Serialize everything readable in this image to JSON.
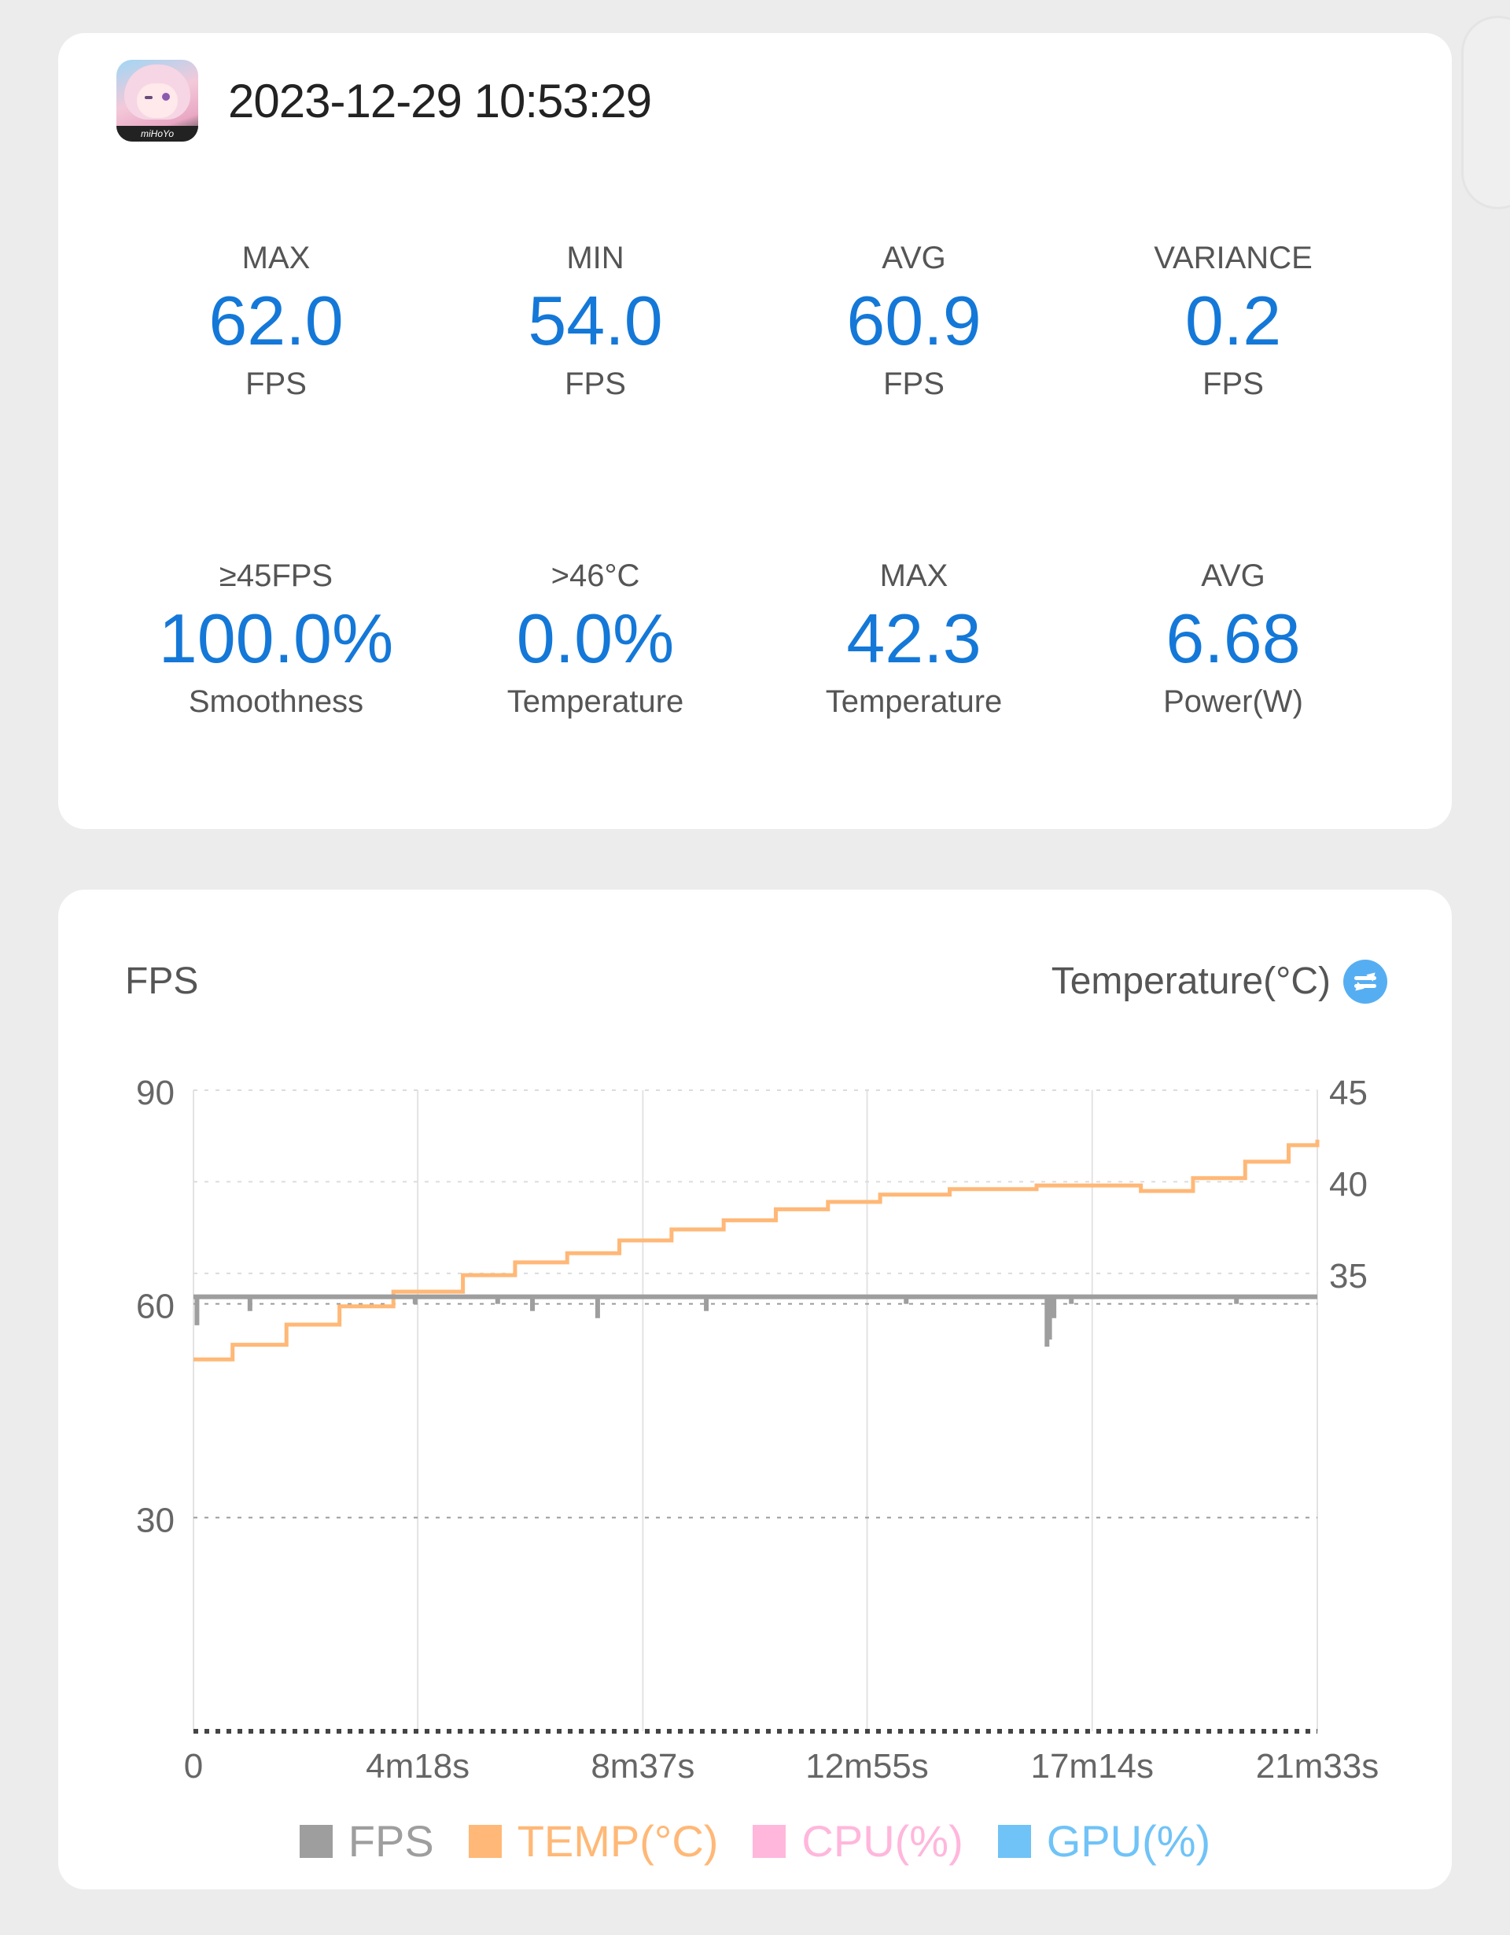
{
  "session": {
    "timestamp": "2023-12-29 10:53:29",
    "app_icon_text": "miHoYo"
  },
  "stats": [
    {
      "label": "MAX",
      "value": "62.0",
      "unit": "FPS"
    },
    {
      "label": "MIN",
      "value": "54.0",
      "unit": "FPS"
    },
    {
      "label": "AVG",
      "value": "60.9",
      "unit": "FPS"
    },
    {
      "label": "VARIANCE",
      "value": "0.2",
      "unit": "FPS"
    },
    {
      "label": "≥45FPS",
      "value": "100.0%",
      "unit": "Smoothness"
    },
    {
      "label": ">46°C",
      "value": "0.0%",
      "unit": "Temperature"
    },
    {
      "label": "MAX",
      "value": "42.3",
      "unit": "Temperature"
    },
    {
      "label": "AVG",
      "value": "6.68",
      "unit": "Power(W)"
    }
  ],
  "chart_header": {
    "left_title": "FPS",
    "right_title": "Temperature(°C)"
  },
  "colors": {
    "accent": "#1478d8",
    "fps": "#9e9e9e",
    "temp": "#ffb877",
    "cpu": "#ffb7dc",
    "gpu": "#6fc3f7"
  },
  "chart_data": {
    "type": "line",
    "title": "",
    "x_ticks": [
      "0",
      "4m18s",
      "8m37s",
      "12m55s",
      "17m14s",
      "21m33s"
    ],
    "x_tick_seconds": [
      0,
      258,
      517,
      775,
      1034,
      1293
    ],
    "xlim": [
      0,
      1293
    ],
    "y_left": {
      "label": "FPS",
      "ticks": [
        "30",
        "60",
        "90"
      ],
      "lim": [
        0,
        90
      ]
    },
    "y_right": {
      "label": "Temperature(°C)",
      "ticks": [
        "35",
        "40",
        "45"
      ],
      "lim": [
        10,
        45
      ]
    },
    "grid": true,
    "legend_position": "bottom-center",
    "legend": [
      "FPS",
      "TEMP(°C)",
      "CPU(%)",
      "GPU(%)"
    ],
    "series": [
      {
        "name": "TEMP(°C)",
        "axis": "right",
        "x": [
          0,
          45,
          107,
          168,
          230,
          310,
          370,
          430,
          490,
          550,
          610,
          670,
          730,
          790,
          870,
          970,
          1030,
          1090,
          1150,
          1210,
          1260,
          1293
        ],
        "y": [
          30.3,
          31.1,
          32.2,
          33.2,
          34.0,
          34.9,
          35.6,
          36.1,
          36.8,
          37.4,
          37.9,
          38.5,
          38.9,
          39.3,
          39.6,
          39.8,
          39.8,
          39.5,
          40.2,
          41.1,
          42.0,
          42.3
        ]
      },
      {
        "name": "FPS",
        "axis": "left",
        "baseline": 61,
        "x": [
          0,
          4,
          65,
          255,
          350,
          390,
          465,
          590,
          820,
          982,
          985,
          990,
          1010,
          1200
        ],
        "y": [
          61,
          57,
          59,
          60,
          60,
          59,
          58,
          59,
          60,
          54,
          55,
          58,
          60,
          60
        ]
      }
    ]
  }
}
